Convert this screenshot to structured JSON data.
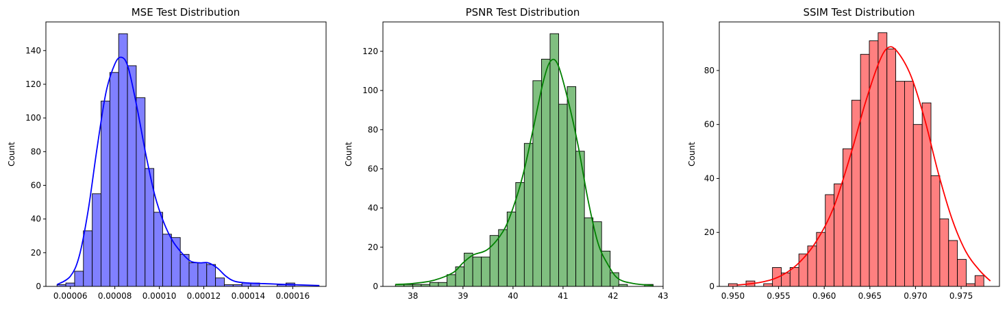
{
  "chart_data": [
    {
      "type": "histogram",
      "title": "MSE Test Distribution",
      "xlabel": "",
      "ylabel": "Count",
      "xlim": [
        4.9e-05,
        0.000175
      ],
      "ylim": [
        0,
        157
      ],
      "xticks": [
        {
          "value": 6e-05,
          "label": "0.00006"
        },
        {
          "value": 8e-05,
          "label": "0.00008"
        },
        {
          "value": 0.0001,
          "label": "0.00010"
        },
        {
          "value": 0.00012,
          "label": "0.00012"
        },
        {
          "value": 0.00014,
          "label": "0.00014"
        },
        {
          "value": 0.00016,
          "label": "0.00016"
        }
      ],
      "yticks": [
        0,
        20,
        40,
        60,
        80,
        100,
        120,
        140
      ],
      "bin_start": 5.4e-05,
      "bin_width": 3.96e-06,
      "counts": [
        1,
        2,
        9,
        33,
        55,
        110,
        127,
        150,
        131,
        112,
        70,
        44,
        31,
        29,
        19,
        14,
        14,
        13,
        5,
        1,
        1,
        2,
        2,
        0,
        0,
        1,
        2,
        0,
        0,
        0
      ],
      "kde_x": [
        5.4e-05,
        6e-05,
        6.4e-05,
        6.8e-05,
        7.2e-05,
        7.6e-05,
        8e-05,
        8.3e-05,
        8.6e-05,
        9e-05,
        9.4e-05,
        9.8e-05,
        0.000102,
        0.000106,
        0.00011,
        0.000114,
        0.000118,
        0.000122,
        0.000126,
        0.00013,
        0.000134,
        0.00014,
        0.00015,
        0.00016,
        0.000172
      ],
      "kde_y": [
        1,
        6,
        18,
        45,
        82,
        115,
        132,
        136,
        130,
        106,
        78,
        54,
        38,
        27,
        20,
        15,
        14,
        14,
        11,
        6,
        3,
        2,
        1.5,
        1,
        0.5
      ],
      "color": "#0000ff",
      "fill": "#8080ff"
    },
    {
      "type": "histogram",
      "title": "PSNR Test Distribution",
      "xlabel": "",
      "ylabel": "Count",
      "xlim": [
        37.4,
        43.0
      ],
      "ylim": [
        0,
        135
      ],
      "xticks": [
        {
          "value": 38,
          "label": "38"
        },
        {
          "value": 39,
          "label": "39"
        },
        {
          "value": 40,
          "label": "40"
        },
        {
          "value": 41,
          "label": "41"
        },
        {
          "value": 42,
          "label": "42"
        },
        {
          "value": 43,
          "label": "43"
        }
      ],
      "yticks": [
        0,
        20,
        40,
        60,
        80,
        100,
        120
      ],
      "bin_start": 37.65,
      "bin_width": 0.1717,
      "counts": [
        1,
        1,
        1,
        1,
        2,
        2,
        6,
        10,
        17,
        15,
        15,
        26,
        29,
        38,
        53,
        73,
        105,
        116,
        129,
        93,
        102,
        69,
        35,
        33,
        18,
        7,
        1,
        0,
        0,
        1
      ],
      "kde_x": [
        37.65,
        38.0,
        38.4,
        38.8,
        39.0,
        39.2,
        39.5,
        39.8,
        40.0,
        40.2,
        40.4,
        40.6,
        40.75,
        40.9,
        41.1,
        41.3,
        41.5,
        41.7,
        41.9,
        42.1,
        42.4,
        42.8
      ],
      "kde_y": [
        1,
        1.5,
        3,
        7,
        12,
        16,
        19,
        28,
        40,
        57,
        80,
        104,
        115,
        113,
        95,
        72,
        44,
        22,
        11,
        4,
        1.5,
        0.5
      ],
      "color": "#008000",
      "fill": "#80bf80"
    },
    {
      "type": "histogram",
      "title": "SSIM Test Distribution",
      "xlabel": "",
      "ylabel": "Count",
      "xlim": [
        0.9485,
        0.9792
      ],
      "ylim": [
        0,
        98
      ],
      "xticks": [
        {
          "value": 0.95,
          "label": "0.950"
        },
        {
          "value": 0.955,
          "label": "0.955"
        },
        {
          "value": 0.96,
          "label": "0.960"
        },
        {
          "value": 0.965,
          "label": "0.965"
        },
        {
          "value": 0.97,
          "label": "0.970"
        },
        {
          "value": 0.975,
          "label": "0.975"
        }
      ],
      "yticks": [
        0,
        20,
        40,
        60,
        80
      ],
      "bin_start": 0.9495,
      "bin_width": 0.000965,
      "counts": [
        1,
        0,
        2,
        0,
        1,
        7,
        5,
        7,
        12,
        15,
        20,
        34,
        38,
        51,
        69,
        86,
        91,
        94,
        88,
        76,
        76,
        60,
        68,
        41,
        25,
        17,
        10,
        1,
        4,
        0
      ],
      "kde_x": [
        0.9505,
        0.953,
        0.955,
        0.957,
        0.959,
        0.961,
        0.963,
        0.9645,
        0.966,
        0.967,
        0.968,
        0.9695,
        0.971,
        0.9725,
        0.974,
        0.9755,
        0.977,
        0.9782
      ],
      "kde_y": [
        0.5,
        1.5,
        3.5,
        8,
        16,
        29,
        50,
        68,
        83,
        88.5,
        87,
        78,
        62,
        42,
        25,
        13,
        6,
        2
      ],
      "color": "#ff0000",
      "fill": "#ff8080"
    }
  ]
}
